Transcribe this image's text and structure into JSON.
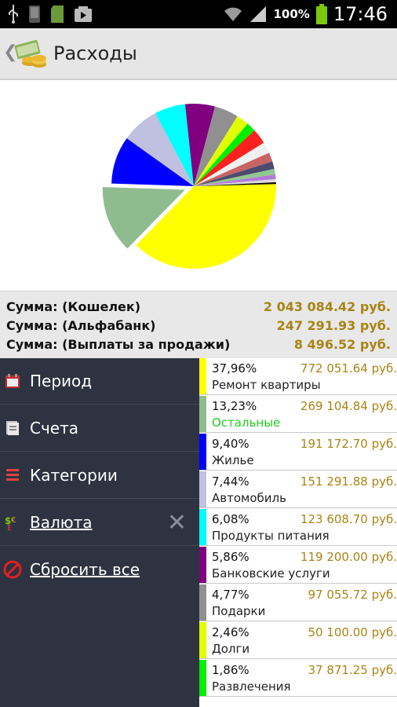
{
  "status_bar": {
    "battery": "100%",
    "time": "17:46"
  },
  "header": {
    "title": "Расходы"
  },
  "summary": [
    {
      "label": "Сумма: (Кошелек)",
      "value": "2 043 084.42 руб."
    },
    {
      "label": "Сумма: (Альфабанк)",
      "value": "247 291.93 руб."
    },
    {
      "label": "Сумма: (Выплаты за продажи)",
      "value": "8 496.52 руб."
    }
  ],
  "menu": [
    {
      "label": "Период",
      "icon": "calendar-icon"
    },
    {
      "label": "Счета",
      "icon": "accounts-icon"
    },
    {
      "label": "Категории",
      "icon": "categories-icon"
    },
    {
      "label": "Валюта",
      "icon": "currency-icon"
    },
    {
      "label": "Сбросить все",
      "icon": "reset-icon"
    }
  ],
  "list": [
    {
      "percent": "37,96%",
      "amount": "772 051.64 руб.",
      "category": "Ремонт квартиры",
      "color": "#ffff00"
    },
    {
      "percent": "13,23%",
      "amount": "269 104.84 руб.",
      "category": "Остальные",
      "color": "#8fbc8f"
    },
    {
      "percent": "9,40%",
      "amount": "191 172.70 руб.",
      "category": "Жилье",
      "color": "#0000ff"
    },
    {
      "percent": "7,44%",
      "amount": "151 291.88 руб.",
      "category": "Автомобиль",
      "color": "#c0c0e0"
    },
    {
      "percent": "6,08%",
      "amount": "123 608.70 руб.",
      "category": "Продукты питания",
      "color": "#00ffff"
    },
    {
      "percent": "5,86%",
      "amount": "119 200.00 руб.",
      "category": "Банковские услуги",
      "color": "#800080"
    },
    {
      "percent": "4,77%",
      "amount": "97 055.72 руб.",
      "category": "Подарки",
      "color": "#909090"
    },
    {
      "percent": "2,46%",
      "amount": "50 100.00 руб.",
      "category": "Долги",
      "color": "#e0ff00"
    },
    {
      "percent": "1,86%",
      "amount": "37 871.25 руб.",
      "category": "Развлечения",
      "color": "#00ee00"
    }
  ],
  "chart_data": {
    "type": "pie",
    "categories": [
      "Ремонт квартиры",
      "Остальные",
      "Жилье",
      "Автомобиль",
      "Продукты питания",
      "Банковские услуги",
      "Подарки",
      "Долги",
      "Развлечения",
      "",
      "",
      "",
      "",
      "",
      "",
      "",
      ""
    ],
    "values": [
      37.96,
      13.23,
      9.4,
      7.44,
      6.08,
      5.86,
      4.77,
      2.46,
      1.86,
      3.0,
      2.2,
      1.8,
      1.5,
      1.1,
      0.9,
      0.6,
      0.35
    ],
    "colors": [
      "#ffff00",
      "#8fbc8f",
      "#0000ff",
      "#c0c0e0",
      "#00ffff",
      "#800080",
      "#909090",
      "#e0ff00",
      "#00ee00",
      "#ff2020",
      "#f0f0f0",
      "#c86464",
      "#4b4b6e",
      "#90c890",
      "#b478dc",
      "#dcdcdc",
      "#0a0a0a"
    ],
    "exploded_index": 1
  }
}
